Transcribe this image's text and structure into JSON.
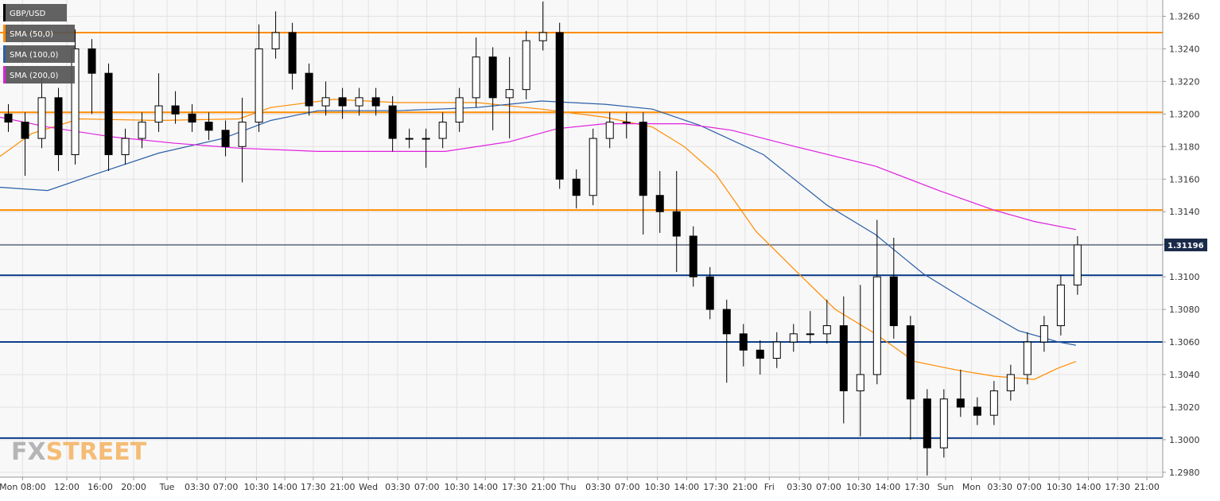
{
  "chart_data": {
    "type": "candlestick",
    "title": "GBP/USD",
    "watermark": {
      "left": "FX",
      "right": "STREET"
    },
    "xlim": [
      0,
      139.2
    ],
    "ylim": [
      1.2977,
      1.327
    ],
    "grid": true,
    "x": [
      1,
      3,
      5,
      7,
      9,
      11,
      13,
      15,
      17,
      19,
      21,
      23,
      25,
      27,
      29,
      31,
      33,
      35,
      37,
      39,
      41,
      43,
      45,
      47,
      49,
      51,
      53,
      55,
      57,
      59,
      61,
      63,
      65,
      67,
      69,
      71,
      73,
      75,
      77,
      79,
      81,
      83,
      85,
      87,
      89,
      91,
      93,
      95,
      97,
      99,
      101,
      103,
      105,
      107,
      109,
      111,
      113,
      115,
      117,
      119,
      121,
      123,
      125,
      127,
      129
    ],
    "open": [
      1.32,
      1.3195,
      1.3185,
      1.321,
      1.3175,
      1.324,
      1.3225,
      1.3175,
      1.3185,
      1.3195,
      1.3205,
      1.32,
      1.3195,
      1.319,
      1.318,
      1.3195,
      1.324,
      1.325,
      1.3225,
      1.3205,
      1.321,
      1.3205,
      1.321,
      1.3205,
      1.3185,
      1.3185,
      1.3185,
      1.3195,
      1.321,
      1.3235,
      1.321,
      1.3215,
      1.3245,
      1.325,
      1.316,
      1.315,
      1.3185,
      1.3195,
      1.3195,
      1.315,
      1.314,
      1.3125,
      1.31,
      1.308,
      1.3065,
      1.3055,
      1.305,
      1.306,
      1.3065,
      1.3065,
      1.307,
      1.303,
      1.304,
      1.31,
      1.307,
      1.3025,
      1.2995,
      1.3025,
      1.302,
      1.3015,
      1.303,
      1.304,
      1.306,
      1.307,
      1.3095
    ],
    "high": [
      1.3206,
      1.3201,
      1.3225,
      1.3216,
      1.3252,
      1.3246,
      1.3231,
      1.3191,
      1.3201,
      1.3225,
      1.3214,
      1.3206,
      1.3201,
      1.3196,
      1.321,
      1.3255,
      1.3263,
      1.3256,
      1.3231,
      1.322,
      1.3216,
      1.3216,
      1.3216,
      1.3211,
      1.3191,
      1.3191,
      1.3201,
      1.3216,
      1.3247,
      1.3241,
      1.3235,
      1.3251,
      1.3269,
      1.3256,
      1.3166,
      1.3191,
      1.3201,
      1.3201,
      1.3201,
      1.3165,
      1.3165,
      1.3131,
      1.3106,
      1.3086,
      1.3071,
      1.3061,
      1.3066,
      1.3071,
      1.3079,
      1.3086,
      1.3088,
      1.3095,
      1.3135,
      1.3124,
      1.3076,
      1.3031,
      1.3031,
      1.3043,
      1.3026,
      1.3036,
      1.3046,
      1.3066,
      1.3076,
      1.3101,
      1.3125
    ],
    "low": [
      1.3189,
      1.3162,
      1.3179,
      1.3165,
      1.3169,
      1.32,
      1.3165,
      1.3169,
      1.3179,
      1.3189,
      1.3194,
      1.3189,
      1.3184,
      1.3174,
      1.3158,
      1.3189,
      1.3234,
      1.3215,
      1.3199,
      1.3199,
      1.3197,
      1.3199,
      1.3199,
      1.3177,
      1.3179,
      1.3167,
      1.3179,
      1.3189,
      1.3204,
      1.319,
      1.3185,
      1.3209,
      1.3239,
      1.3154,
      1.3142,
      1.3144,
      1.3179,
      1.3185,
      1.3126,
      1.3127,
      1.3103,
      1.3094,
      1.3074,
      1.3035,
      1.3045,
      1.304,
      1.3044,
      1.3054,
      1.3059,
      1.3059,
      1.301,
      1.3002,
      1.3034,
      1.3062,
      1.3,
      1.2978,
      1.2989,
      1.3014,
      1.3009,
      1.3009,
      1.3024,
      1.3034,
      1.3054,
      1.3064,
      1.3089
    ],
    "close": [
      1.3195,
      1.3185,
      1.321,
      1.3175,
      1.324,
      1.3225,
      1.3175,
      1.3185,
      1.3195,
      1.3205,
      1.32,
      1.3195,
      1.319,
      1.318,
      1.3195,
      1.324,
      1.325,
      1.3225,
      1.3205,
      1.321,
      1.3205,
      1.321,
      1.3205,
      1.3185,
      1.3185,
      1.3185,
      1.3195,
      1.321,
      1.3235,
      1.321,
      1.3215,
      1.3245,
      1.325,
      1.316,
      1.315,
      1.3185,
      1.3195,
      1.3195,
      1.315,
      1.314,
      1.3125,
      1.31,
      1.308,
      1.3065,
      1.3055,
      1.305,
      1.306,
      1.3065,
      1.3065,
      1.307,
      1.303,
      1.304,
      1.31,
      1.307,
      1.3025,
      1.2995,
      1.3025,
      1.302,
      1.3015,
      1.303,
      1.304,
      1.306,
      1.307,
      1.3095,
      1.31196
    ],
    "up_color": "#ffffff",
    "down_color": "#000000",
    "wick_color": "#000000",
    "lines": [
      {
        "name": "SMA (50,0)",
        "color": "#ff8c00",
        "x": [
          0,
          3.8,
          9.5,
          19.0,
          28.6,
          32.4,
          40.0,
          47.6,
          57.1,
          64.8,
          72.4,
          78.1,
          81.9,
          85.7,
          90.5,
          95.2,
          100.0,
          104.8,
          109.5,
          114.3,
          119.0,
          123.8,
          126.7,
          128.8
        ],
        "values": [
          1.3174,
          1.3188,
          1.3197,
          1.3196,
          1.3197,
          1.3204,
          1.3209,
          1.3207,
          1.3207,
          1.3203,
          1.3198,
          1.3192,
          1.318,
          1.3163,
          1.3128,
          1.3104,
          1.308,
          1.3065,
          1.3048,
          1.3043,
          1.3039,
          1.3037,
          1.3044,
          1.3048
        ]
      },
      {
        "name": "SMA (100,0)",
        "color": "#2a5fa8",
        "x": [
          0,
          5.7,
          11.4,
          19.0,
          26.7,
          32.4,
          38.1,
          47.6,
          57.1,
          64.8,
          72.4,
          78.1,
          83.8,
          91.4,
          99.0,
          104.8,
          110.5,
          116.2,
          121.9,
          126.7,
          128.8
        ],
        "values": [
          1.3155,
          1.3153,
          1.3163,
          1.3176,
          1.3185,
          1.3196,
          1.3202,
          1.3202,
          1.3204,
          1.3208,
          1.3206,
          1.3203,
          1.3193,
          1.3175,
          1.3144,
          1.3126,
          1.3102,
          1.3084,
          1.3067,
          1.306,
          1.3058
        ]
      },
      {
        "name": "SMA (200,0)",
        "color": "#e020e0",
        "x": [
          0,
          5.7,
          13.3,
          21.0,
          28.6,
          38.1,
          47.6,
          53.3,
          61.0,
          66.7,
          72.4,
          81.9,
          87.6,
          95.2,
          104.8,
          112.4,
          119.0,
          123.8,
          128.8
        ],
        "values": [
          1.3198,
          1.3192,
          1.3186,
          1.3182,
          1.3179,
          1.3177,
          1.3177,
          1.3177,
          1.3183,
          1.3191,
          1.3194,
          1.3194,
          1.319,
          1.318,
          1.3168,
          1.3153,
          1.3141,
          1.3134,
          1.3129
        ]
      }
    ],
    "levels": [
      {
        "value": 1.325,
        "color": "#ff8c00"
      },
      {
        "value": 1.3201,
        "color": "#ff8c00"
      },
      {
        "value": 1.3141,
        "color": "#ff8c00"
      },
      {
        "value": 1.3101,
        "color": "#0d3f8a"
      },
      {
        "value": 1.306,
        "color": "#0d3f8a"
      },
      {
        "value": 1.3001,
        "color": "#0d3f8a"
      }
    ],
    "current_price": {
      "value": 1.31196,
      "color": "#1a2a4a"
    },
    "yticks": [
      {
        "value": 1.298,
        "label": "1.2980"
      },
      {
        "value": 1.3,
        "label": "1.3000"
      },
      {
        "value": 1.302,
        "label": "1.3020"
      },
      {
        "value": 1.304,
        "label": "1.3040"
      },
      {
        "value": 1.306,
        "label": "1.3060"
      },
      {
        "value": 1.308,
        "label": "1.3080"
      },
      {
        "value": 1.31,
        "label": "1.3100"
      },
      {
        "value": 1.312,
        "label": "1.3120"
      },
      {
        "value": 1.314,
        "label": "1.3140"
      },
      {
        "value": 1.316,
        "label": "1.3160"
      },
      {
        "value": 1.318,
        "label": "1.3180"
      },
      {
        "value": 1.32,
        "label": "1.3200"
      },
      {
        "value": 1.322,
        "label": "1.3220"
      },
      {
        "value": 1.324,
        "label": "1.3240"
      },
      {
        "value": 1.326,
        "label": "1.3260"
      }
    ],
    "xticks": [
      {
        "value": 2.7,
        "label": "Mon 08:00"
      },
      {
        "value": 8.0,
        "label": "12:00"
      },
      {
        "value": 12.0,
        "label": "16:00"
      },
      {
        "value": 16.0,
        "label": "20:00"
      },
      {
        "value": 20.0,
        "label": "Tue"
      },
      {
        "value": 23.6,
        "label": "03:30"
      },
      {
        "value": 27.0,
        "label": "07:00"
      },
      {
        "value": 30.7,
        "label": "10:30"
      },
      {
        "value": 34.1,
        "label": "14:00"
      },
      {
        "value": 37.5,
        "label": "17:30"
      },
      {
        "value": 41.0,
        "label": "21:00"
      },
      {
        "value": 44.1,
        "label": "Wed"
      },
      {
        "value": 47.6,
        "label": "03:30"
      },
      {
        "value": 51.1,
        "label": "07:00"
      },
      {
        "value": 54.7,
        "label": "10:30"
      },
      {
        "value": 58.1,
        "label": "14:00"
      },
      {
        "value": 61.6,
        "label": "17:30"
      },
      {
        "value": 65.1,
        "label": "21:00"
      },
      {
        "value": 68.0,
        "label": "Thu"
      },
      {
        "value": 71.6,
        "label": "03:30"
      },
      {
        "value": 75.1,
        "label": "07:00"
      },
      {
        "value": 78.7,
        "label": "10:30"
      },
      {
        "value": 82.2,
        "label": "14:00"
      },
      {
        "value": 85.7,
        "label": "17:30"
      },
      {
        "value": 89.2,
        "label": "21:00"
      },
      {
        "value": 92.1,
        "label": "Fri"
      },
      {
        "value": 95.7,
        "label": "03:30"
      },
      {
        "value": 99.2,
        "label": "07:00"
      },
      {
        "value": 102.8,
        "label": "10:30"
      },
      {
        "value": 106.3,
        "label": "14:00"
      },
      {
        "value": 109.8,
        "label": "17:30"
      },
      {
        "value": 113.2,
        "label": "Sun"
      },
      {
        "value": 116.3,
        "label": "Mon"
      },
      {
        "value": 119.7,
        "label": "03:30"
      },
      {
        "value": 123.2,
        "label": "07:00"
      },
      {
        "value": 126.8,
        "label": "10:30"
      },
      {
        "value": 130.3,
        "label": "14:00"
      },
      {
        "value": 133.8,
        "label": "17:30"
      },
      {
        "value": 137.3,
        "label": "21:00"
      }
    ]
  }
}
